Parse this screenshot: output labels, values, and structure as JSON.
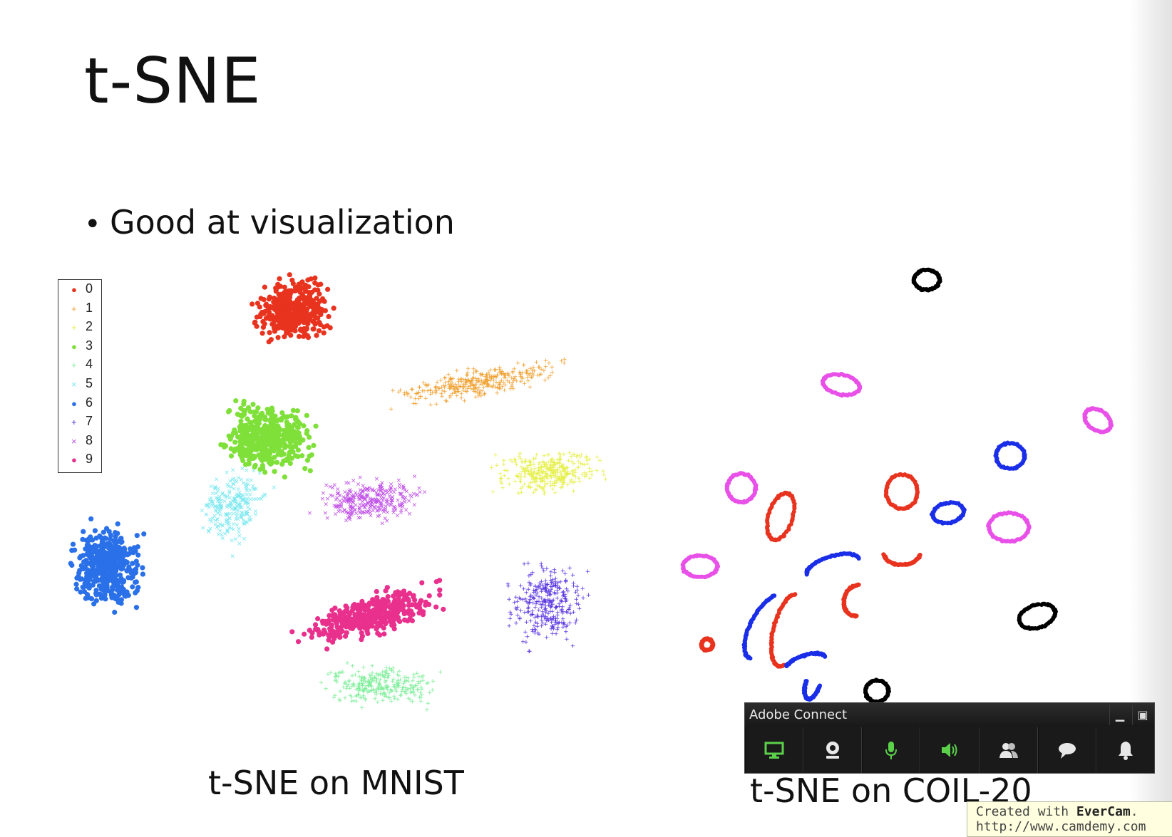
{
  "slide": {
    "title": "t-SNE",
    "bullet": "Good at visualization"
  },
  "mnist": {
    "caption": "t-SNE on MNIST",
    "legend": [
      {
        "label": "0",
        "color": "#e8331f",
        "marker": "●"
      },
      {
        "label": "1",
        "color": "#f0a030",
        "marker": "+"
      },
      {
        "label": "2",
        "color": "#e6f04a",
        "marker": "+"
      },
      {
        "label": "3",
        "color": "#7fe03a",
        "marker": "●"
      },
      {
        "label": "4",
        "color": "#7fee9a",
        "marker": "+"
      },
      {
        "label": "5",
        "color": "#7ce8f0",
        "marker": "×"
      },
      {
        "label": "6",
        "color": "#2a70e8",
        "marker": "●"
      },
      {
        "label": "7",
        "color": "#5530e0",
        "marker": "+"
      },
      {
        "label": "8",
        "color": "#c050e8",
        "marker": "×"
      },
      {
        "label": "9",
        "color": "#e8308c",
        "marker": "●"
      }
    ]
  },
  "coil": {
    "caption": "t-SNE on COIL-20",
    "colors": [
      "#000000",
      "#e8331f",
      "#1a2ee8",
      "#e850e8"
    ]
  },
  "adobe_connect": {
    "title": "Adobe Connect",
    "buttons": [
      {
        "icon": "screen-share-icon",
        "color": "#5bd14a"
      },
      {
        "icon": "webcam-icon",
        "color": "#e8e8e8"
      },
      {
        "icon": "microphone-icon",
        "color": "#5bd14a"
      },
      {
        "icon": "speaker-icon",
        "color": "#5bd14a"
      },
      {
        "icon": "attendees-icon",
        "color": "#e8e8e8"
      },
      {
        "icon": "chat-icon",
        "color": "#e8e8e8"
      },
      {
        "icon": "notification-bell-icon",
        "color": "#e8e8e8"
      }
    ]
  },
  "evercam": {
    "prefix": "Created with ",
    "brand": "EverCam",
    "suffix": ".",
    "url": "http://www.camdemy.com"
  }
}
